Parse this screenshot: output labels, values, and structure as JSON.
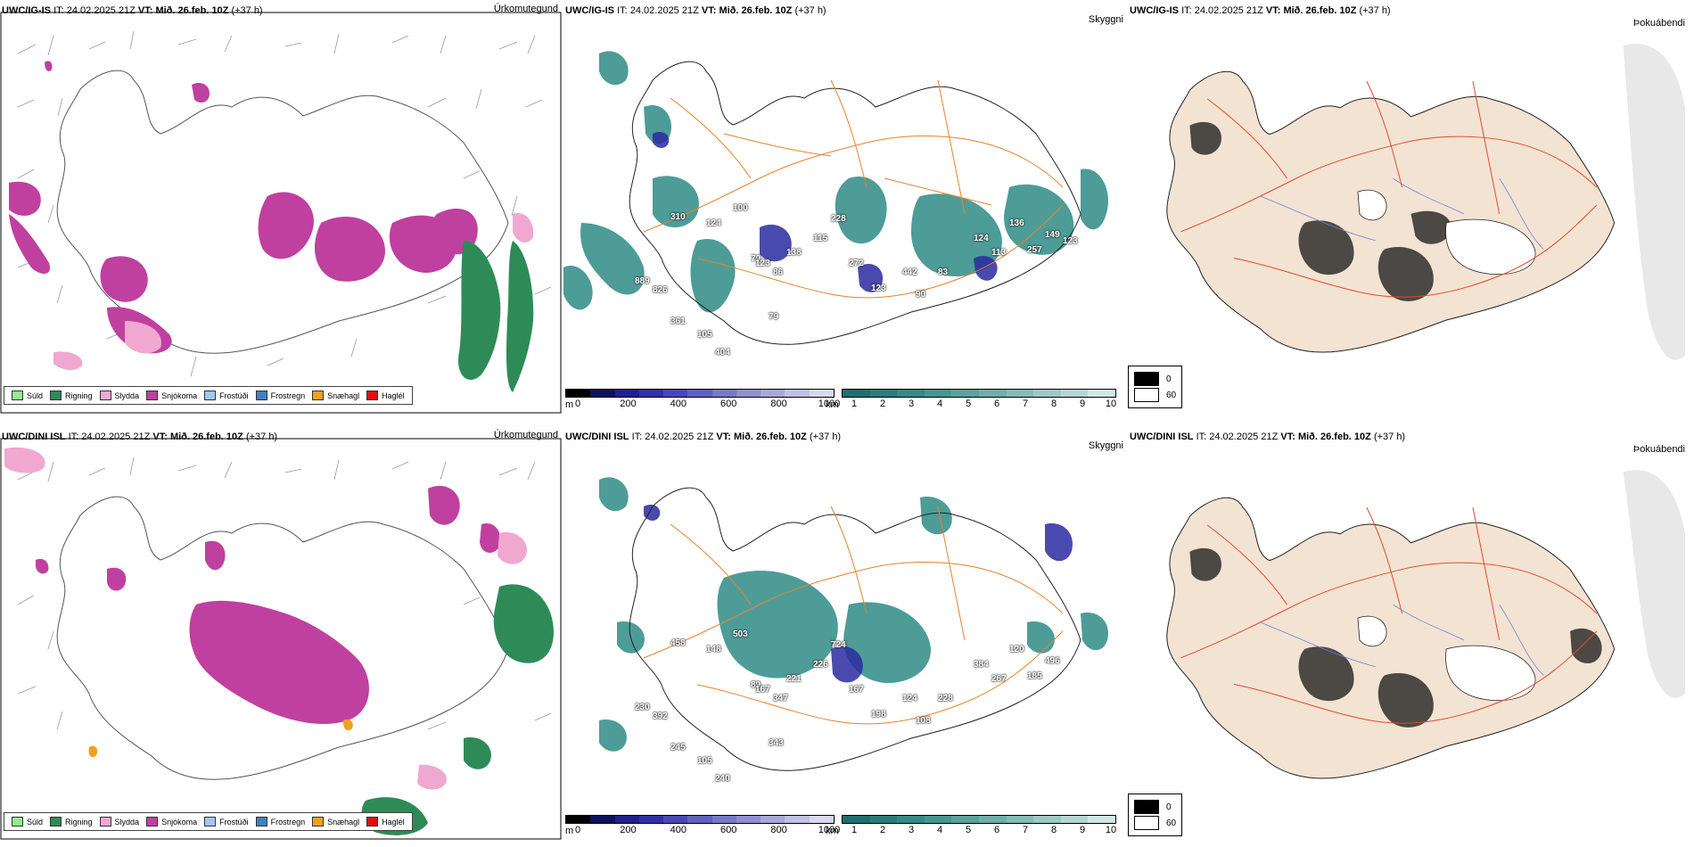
{
  "rows": [
    {
      "model": "UWC/IG-IS",
      "it_label": "IT:",
      "it_value": "24.02.2025 21Z",
      "vt_label": "VT:",
      "vt_value": "Mið. 26.feb. 10Z",
      "lead": "(+37 h)"
    },
    {
      "model": "UWC/DINI ISL",
      "it_label": "IT:",
      "it_value": "24.02.2025 21Z",
      "vt_label": "VT:",
      "vt_value": "Mið. 26.feb. 10Z",
      "lead": "(+37 h)"
    }
  ],
  "panel_titles": {
    "precip_type": "Úrkomutegund",
    "ceiling": "Skyggni",
    "fog": "Þokuábendi"
  },
  "precip_legend": [
    {
      "label": "Súld",
      "color": "#90ee90"
    },
    {
      "label": "Rigning",
      "color": "#2e8b57"
    },
    {
      "label": "Slydda",
      "color": "#f0a8d0"
    },
    {
      "label": "Snjókoma",
      "color": "#c040a0"
    },
    {
      "label": "Frostúði",
      "color": "#a0c8f0"
    },
    {
      "label": "Frostregn",
      "color": "#4080c0"
    },
    {
      "label": "Snæhagl",
      "color": "#f0a020"
    },
    {
      "label": "Haglél",
      "color": "#e01010"
    }
  ],
  "cloud_base_scale": {
    "unit": "m",
    "ticks": [
      "0",
      "200",
      "400",
      "600",
      "800",
      "1000"
    ],
    "colors": [
      "#000000",
      "#101060",
      "#202090",
      "#3030a8",
      "#4848b8",
      "#6060c0",
      "#7878c8",
      "#9090d0",
      "#a8a8d8",
      "#c0c0e4",
      "#d8d8f0"
    ]
  },
  "visibility_scale": {
    "unit": "km",
    "ticks": [
      "1",
      "2",
      "3",
      "4",
      "5",
      "6",
      "7",
      "8",
      "9",
      "10"
    ],
    "colors": [
      "#1f6f6f",
      "#2a7d7a",
      "#358a85",
      "#479690",
      "#5aa29b",
      "#70aea8",
      "#86bab5",
      "#9ec8c3",
      "#b6d6d2",
      "#d0e6e3"
    ]
  },
  "fog_key": [
    {
      "label": "0",
      "color": "#000000"
    },
    {
      "label": "60",
      "color": "#ffffff"
    }
  ],
  "ceiling_labels_top": [
    "310",
    "100",
    "124",
    "79",
    "86",
    "79",
    "123",
    "138",
    "115",
    "228",
    "889",
    "826",
    "361",
    "105",
    "404",
    "272",
    "123",
    "442",
    "90",
    "83",
    "124",
    "113",
    "136",
    "257",
    "149",
    "123"
  ],
  "ceiling_labels_bottom": [
    "458",
    "503",
    "148",
    "89",
    "347",
    "343",
    "167",
    "221",
    "226",
    "724",
    "230",
    "392",
    "245",
    "105",
    "240",
    "167",
    "198",
    "124",
    "108",
    "228",
    "384",
    "267",
    "120",
    "185",
    "496"
  ],
  "colors": {
    "snow": "#c040a0",
    "sleet": "#f0a8d0",
    "rain": "#2e8b57",
    "visibility": "#2f8b86",
    "cloudbase": "#2a2aa0",
    "roads": "#e8822a",
    "land_fog": "#f3e3d3",
    "fog_roads": "#e04a2a",
    "fog_rivers": "#7080e0"
  }
}
